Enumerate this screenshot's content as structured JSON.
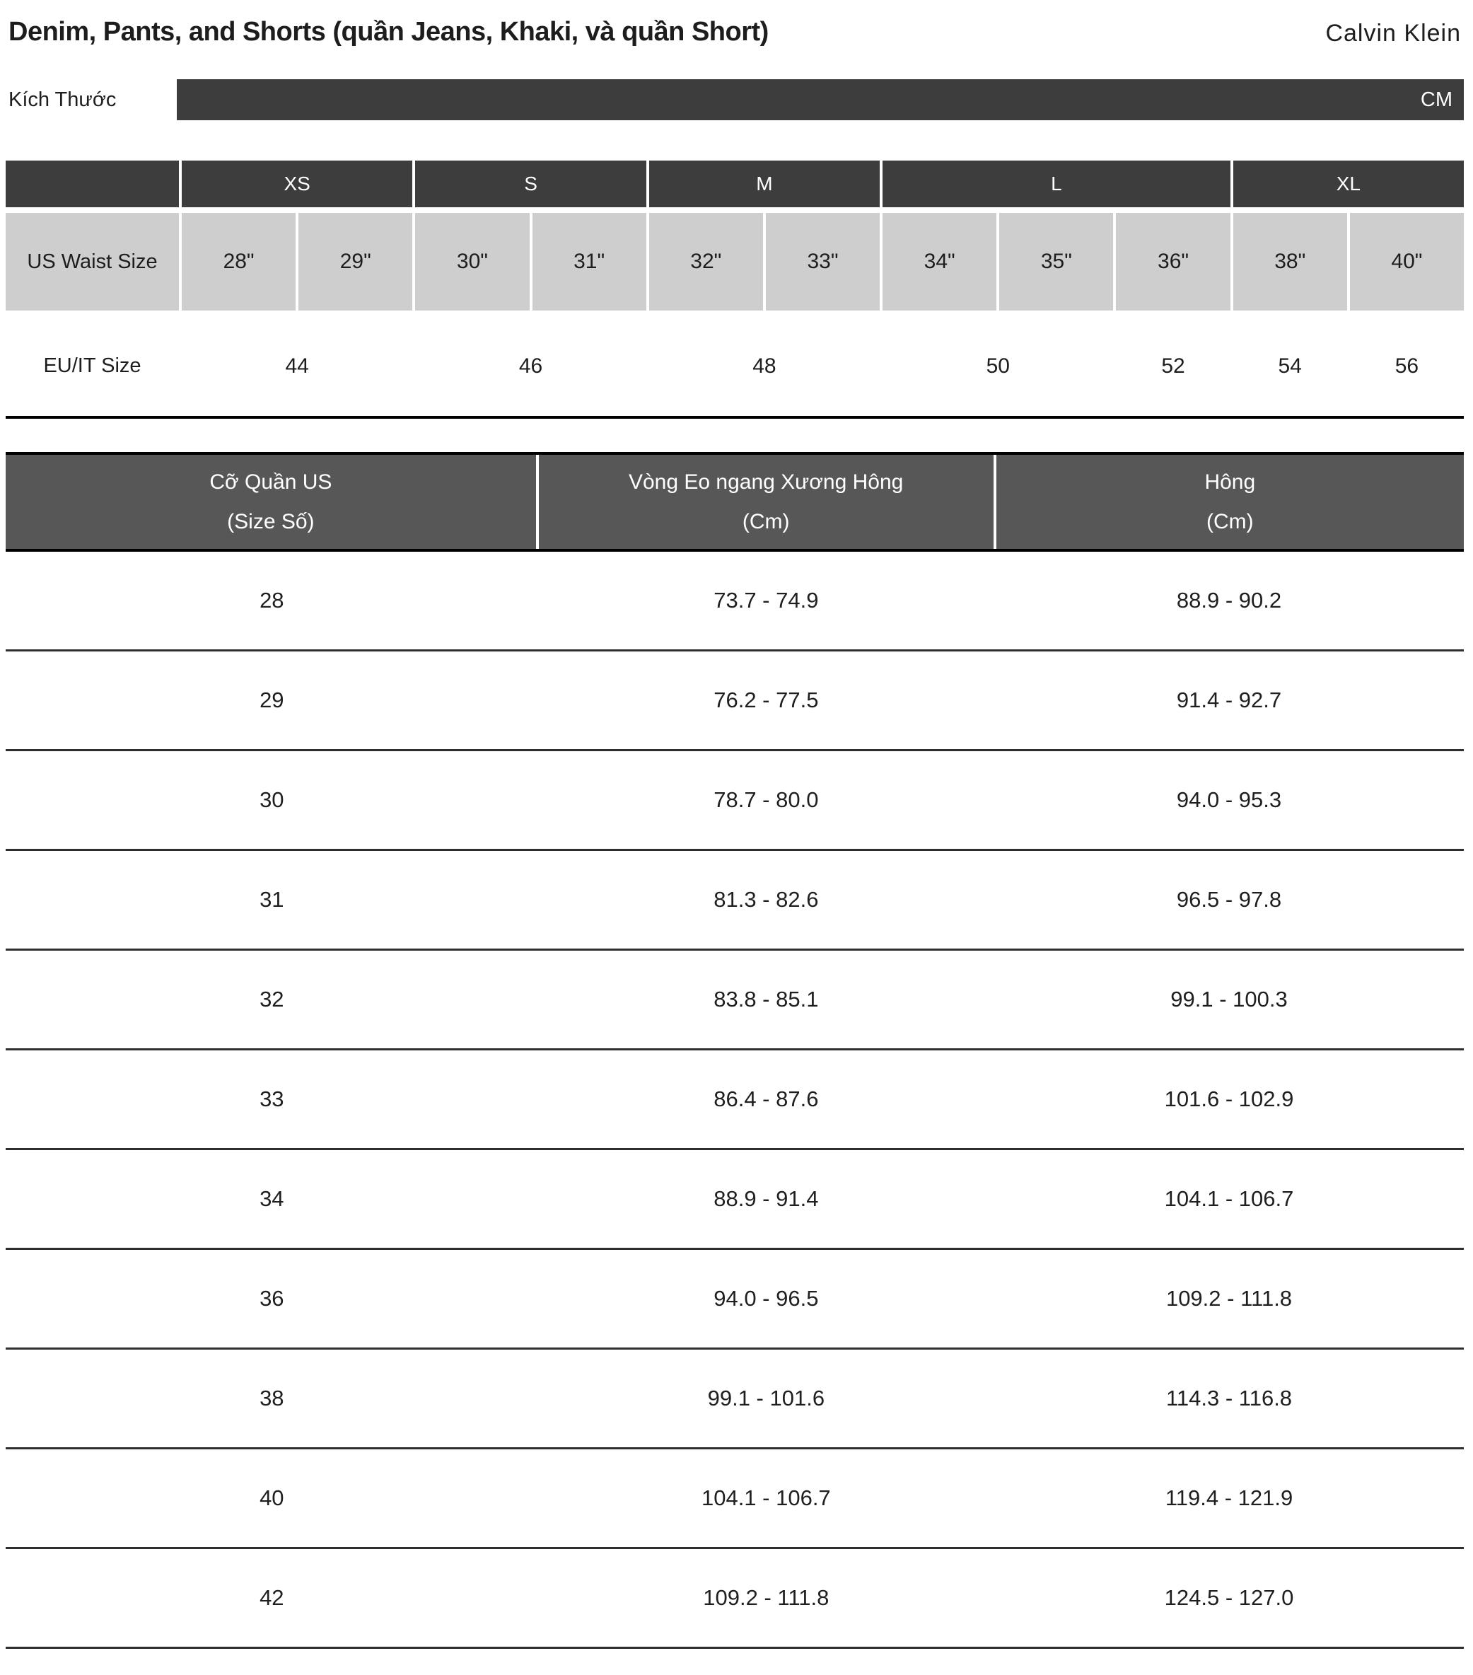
{
  "header": {
    "title": "Denim, Pants, and Shorts (quần Jeans, Khaki, và quần Short)",
    "brand": "Calvin Klein"
  },
  "unit_bar": {
    "label": "Kích Thước",
    "unit": "CM"
  },
  "size_table": {
    "groups": [
      {
        "label": "XS",
        "span": 2
      },
      {
        "label": "S",
        "span": 2
      },
      {
        "label": "M",
        "span": 2
      },
      {
        "label": "L",
        "span": 3
      },
      {
        "label": "XL",
        "span": 2
      }
    ],
    "waist_row_label": "US Waist Size",
    "waist_sizes": [
      "28\"",
      "29\"",
      "30\"",
      "31\"",
      "32\"",
      "33\"",
      "34\"",
      "35\"",
      "36\"",
      "38\"",
      "40\""
    ],
    "eu_row_label": "EU/IT Size",
    "eu_sizes": [
      {
        "label": "44",
        "span": 2
      },
      {
        "label": "46",
        "span": 2
      },
      {
        "label": "48",
        "span": 2
      },
      {
        "label": "50",
        "span": 2
      },
      {
        "label": "52",
        "span": 1
      },
      {
        "label": "54",
        "span": 1
      },
      {
        "label": "56",
        "span": 1
      }
    ]
  },
  "measurement_table": {
    "columns": [
      {
        "line1": "Cỡ Quần US",
        "line2": "(Size Số)"
      },
      {
        "line1": "Vòng Eo ngang Xương Hông",
        "line2": "(Cm)"
      },
      {
        "line1": "Hông",
        "line2": "(Cm)"
      }
    ],
    "rows": [
      {
        "size": "28",
        "waist": "73.7 - 74.9",
        "hip": "88.9 - 90.2"
      },
      {
        "size": "29",
        "waist": "76.2 - 77.5",
        "hip": "91.4 - 92.7"
      },
      {
        "size": "30",
        "waist": "78.7 - 80.0",
        "hip": "94.0 - 95.3"
      },
      {
        "size": "31",
        "waist": "81.3 - 82.6",
        "hip": "96.5 - 97.8"
      },
      {
        "size": "32",
        "waist": "83.8 - 85.1",
        "hip": "99.1 - 100.3"
      },
      {
        "size": "33",
        "waist": "86.4 - 87.6",
        "hip": "101.6 - 102.9"
      },
      {
        "size": "34",
        "waist": "88.9 - 91.4",
        "hip": "104.1 - 106.7"
      },
      {
        "size": "36",
        "waist": "94.0 - 96.5",
        "hip": "109.2 - 111.8"
      },
      {
        "size": "38",
        "waist": "99.1 - 101.6",
        "hip": "114.3 - 116.8"
      },
      {
        "size": "40",
        "waist": "104.1 - 106.7",
        "hip": "119.4 - 121.9"
      },
      {
        "size": "42",
        "waist": "109.2 - 111.8",
        "hip": "124.5 - 127.0"
      }
    ]
  },
  "colors": {
    "dark_bar": "#3d3d3d",
    "header_gray": "#575757",
    "cell_gray": "#cecece",
    "text": "#1d1d1d"
  }
}
